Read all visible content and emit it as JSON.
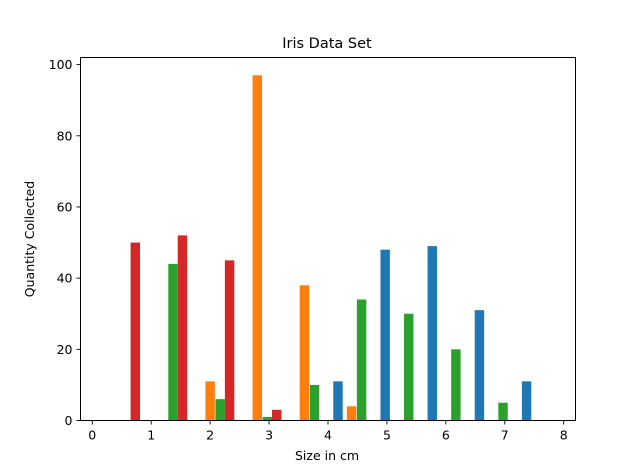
{
  "chart_data": {
    "type": "bar",
    "title": "Iris Data Set",
    "xlabel": "Size in cm",
    "ylabel": "Quantity Collected",
    "xlim": [
      -0.2,
      8.2
    ],
    "ylim": [
      0,
      102
    ],
    "xticks": [
      "0",
      "1",
      "2",
      "3",
      "4",
      "5",
      "6",
      "7",
      "8"
    ],
    "yticks": [
      "0",
      "20",
      "40",
      "60",
      "80",
      "100"
    ],
    "grid": false,
    "legend": "none",
    "series": [
      {
        "color": "#1f77b4",
        "x": [
          4.17,
          4.97,
          5.77,
          6.57,
          7.37
        ],
        "values": [
          11,
          48,
          49,
          31,
          11
        ]
      },
      {
        "color": "#ff7f0e",
        "x": [
          2.0,
          2.8,
          3.6,
          4.4
        ],
        "values": [
          11,
          97,
          38,
          4
        ]
      },
      {
        "color": "#2ca02c",
        "x": [
          1.37,
          2.17,
          2.97,
          3.77,
          4.57,
          5.37,
          6.17,
          6.97
        ],
        "values": [
          44,
          6,
          1,
          10,
          34,
          30,
          20,
          5
        ]
      },
      {
        "color": "#d62728",
        "x": [
          0.73,
          1.53,
          2.33,
          3.13
        ],
        "values": [
          50,
          52,
          45,
          3
        ]
      }
    ],
    "bar_width": 0.16
  }
}
